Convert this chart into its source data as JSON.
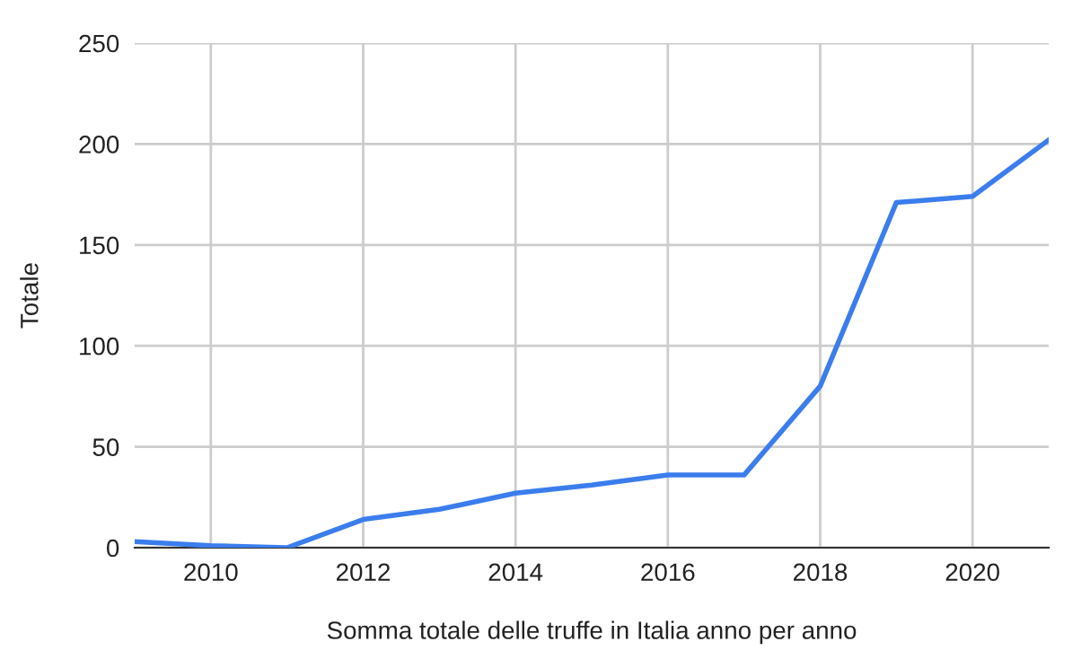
{
  "chart_data": {
    "type": "line",
    "xlabel": "Somma totale delle truffe in Italia anno per anno",
    "ylabel": "Totale",
    "x": [
      2009,
      2010,
      2011,
      2012,
      2013,
      2014,
      2015,
      2016,
      2017,
      2018,
      2019,
      2020,
      2021
    ],
    "series": [
      {
        "color": "#3b7ded",
        "values": [
          3,
          1,
          0,
          14,
          19,
          27,
          31,
          36,
          36,
          80,
          171,
          174,
          202
        ]
      }
    ],
    "xlim": [
      2009,
      2021
    ],
    "xticks": [
      2010,
      2012,
      2014,
      2016,
      2018,
      2020
    ],
    "ylim": [
      0,
      250
    ],
    "yticks": [
      0,
      50,
      100,
      150,
      200,
      250
    ],
    "grid": true
  }
}
